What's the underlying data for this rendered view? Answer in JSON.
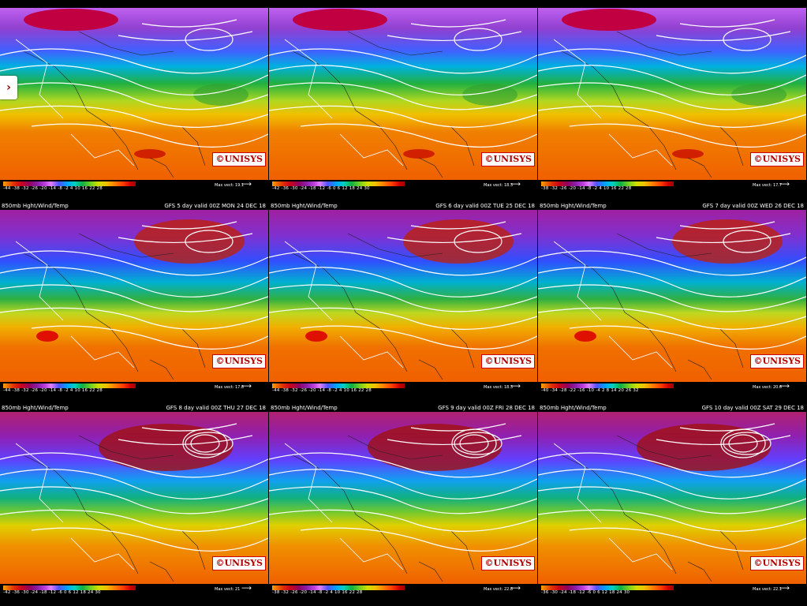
{
  "side_button": {
    "label": "›"
  },
  "panels": [
    {
      "left_title": "",
      "right_title": "",
      "scale": "-44 -38 -32 -26 -20 -14 -8 -2 4 10 16 22 28",
      "max": "Max vect: 19.1",
      "logo": "©UNISYS"
    },
    {
      "left_title": "",
      "right_title": "",
      "scale": "-42 -36 -30 -24 -18 -12 -6 0 6 12 18 24 30",
      "max": "Max vect: 18.3",
      "logo": "©UNISYS"
    },
    {
      "left_title": "",
      "right_title": "",
      "scale": "-38 -32 -26 -20 -14 -8 -2 4 10 16 22 28",
      "max": "Max vect: 17.7",
      "logo": "©UNISYS"
    },
    {
      "left_title": "850mb Hght/Wind/Temp",
      "right_title": "GFS 5 day valid 00Z MON 24 DEC 18",
      "scale": "-44 -38 -32 -26 -20 -14 -8 -2 4 10 16 22 28",
      "max": "Max vect: 17.8",
      "logo": "©UNISYS"
    },
    {
      "left_title": "850mb Hght/Wind/Temp",
      "right_title": "GFS 6 day valid 00Z TUE 25 DEC 18",
      "scale": "-44 -38 -32 -26 -20 -14 -8 -2 4 10 16 22 28",
      "max": "Max vect: 18.3",
      "logo": "©UNISYS"
    },
    {
      "left_title": "850mb Hght/Wind/Temp",
      "right_title": "GFS 7 day valid 00Z WED 26 DEC 18",
      "scale": "-40 -34 -28 -22 -16 -10 -4 2 8 14 20 26 32",
      "max": "Max vect: 20.6",
      "logo": "©UNISYS"
    },
    {
      "left_title": "850mb Hght/Wind/Temp",
      "right_title": "GFS 8 day valid 00Z THU 27 DEC 18",
      "scale": "-42 -36 -30 -24 -18 -12 -6 0 6 12 18 24 30",
      "max": "Max vect: 21",
      "logo": "©UNISYS"
    },
    {
      "left_title": "850mb Hght/Wind/Temp",
      "right_title": "GFS 9 day valid 00Z FRI 28 DEC 18",
      "scale": "-38 -32 -26 -20 -14 -8 -2 4 10 16 22 28",
      "max": "Max vect: 22.8",
      "logo": "©UNISYS"
    },
    {
      "left_title": "850mb Hght/Wind/Temp",
      "right_title": "GFS 10 day valid 00Z SAT 29 DEC 18",
      "scale": "-36 -30 -24 -18 -12 -6 0 6 12 18 24 30",
      "max": "Max vect: 22.1",
      "logo": "©UNISYS"
    }
  ]
}
